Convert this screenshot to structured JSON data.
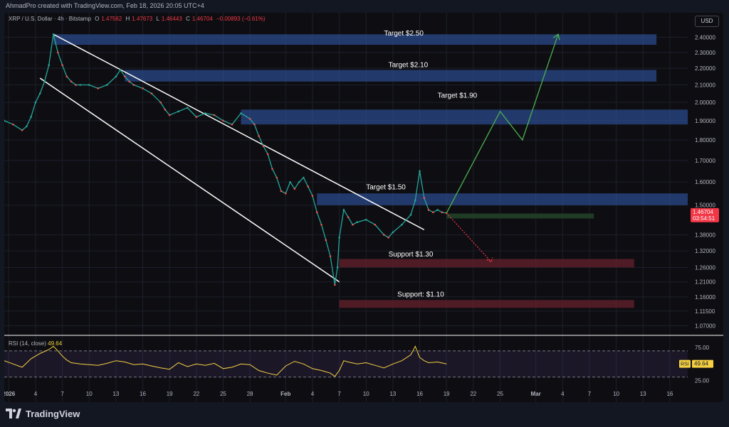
{
  "header": {
    "created_by": "AhmadPro created with TradingView.com, Feb 18, 2026 20:05 UTC+4",
    "symbol": "XRP / U.S. Dollar · 4h · Bitstamp",
    "open_label": "O",
    "open": "1.47562",
    "high_label": "H",
    "high": "1.47673",
    "low_label": "L",
    "low": "1.46443",
    "close_label": "C",
    "close": "1.46704",
    "change": "−0.00893 (−0.61%)",
    "currency": "USD"
  },
  "price_tag": {
    "price": "1.46704",
    "countdown": "03:54:51",
    "value": 1.46704,
    "color": "#f23645"
  },
  "rsi": {
    "label": "RSI (14, close)",
    "value": "49.64",
    "tag_name": "RSI",
    "tag_value": "49.64",
    "value_num": 49.64,
    "upper": 70,
    "lower": 30,
    "ticks": [
      {
        "label": "75.00",
        "v": 75
      },
      {
        "label": "25.00",
        "v": 25
      }
    ],
    "color": "#f5d042"
  },
  "footer": {
    "brand": "TradingView"
  },
  "chart_data": {
    "type": "line",
    "title": "",
    "price_axis": {
      "range": [
        1.05,
        2.46
      ],
      "scale": "log",
      "ticks": [
        "2.40000",
        "2.30000",
        "2.20000",
        "2.10000",
        "2.00000",
        "1.90000",
        "1.80000",
        "1.70000",
        "1.60000",
        "1.50000",
        "1.38000",
        "1.32000",
        "1.26000",
        "1.21000",
        "1.16000",
        "1.11500",
        "1.07000"
      ],
      "tick_values": [
        2.4,
        2.3,
        2.2,
        2.1,
        2.0,
        1.9,
        1.8,
        1.7,
        1.6,
        1.5,
        1.38,
        1.32,
        1.26,
        1.21,
        1.16,
        1.115,
        1.07
      ]
    },
    "time_axis": {
      "labels": [
        "2026",
        "4",
        "7",
        "10",
        "13",
        "16",
        "19",
        "22",
        "25",
        "28",
        "Feb",
        "4",
        "7",
        "10",
        "13",
        "16",
        "19",
        "22",
        "25",
        "Mar",
        "4",
        "7",
        "10",
        "13",
        "16"
      ],
      "label_days": [
        1,
        4,
        7,
        10,
        13,
        16,
        19,
        22,
        25,
        28,
        32,
        35,
        38,
        41,
        44,
        47,
        50,
        53,
        56,
        60,
        63,
        66,
        69,
        72,
        75
      ],
      "range_days": [
        0.5,
        77
      ]
    },
    "price_series": {
      "name": "",
      "x": [
        0.5,
        1.5,
        2.5,
        3,
        3.5,
        4,
        4.5,
        5,
        5.5,
        6,
        6.5,
        7,
        7.5,
        8,
        8.5,
        9,
        10,
        11,
        12,
        13,
        13.5,
        14,
        14.5,
        15,
        16,
        17,
        18,
        18.5,
        19,
        20,
        21,
        22,
        23,
        24,
        25,
        26,
        27,
        28,
        28.5,
        29,
        29.5,
        30,
        30.5,
        31,
        31.5,
        32,
        32.5,
        33,
        33.5,
        34,
        34.5,
        35,
        35.5,
        36,
        36.5,
        37,
        37.5,
        37.8,
        38,
        38.5,
        39,
        39.5,
        40,
        41,
        42,
        43,
        43.5,
        44,
        45,
        46,
        46.5,
        47,
        47.5,
        48,
        48.5,
        49,
        49.5,
        50
      ],
      "y": [
        1.9,
        1.88,
        1.85,
        1.87,
        1.92,
        2.0,
        2.05,
        2.12,
        2.22,
        2.42,
        2.3,
        2.22,
        2.15,
        2.12,
        2.1,
        2.1,
        2.1,
        2.08,
        2.1,
        2.15,
        2.19,
        2.15,
        2.12,
        2.1,
        2.08,
        2.05,
        2.0,
        1.96,
        1.93,
        1.95,
        1.97,
        1.92,
        1.94,
        1.93,
        1.9,
        1.88,
        1.94,
        1.91,
        1.88,
        1.82,
        1.77,
        1.73,
        1.66,
        1.62,
        1.56,
        1.55,
        1.6,
        1.57,
        1.6,
        1.62,
        1.58,
        1.54,
        1.47,
        1.42,
        1.36,
        1.3,
        1.2,
        1.26,
        1.37,
        1.48,
        1.45,
        1.42,
        1.43,
        1.44,
        1.42,
        1.38,
        1.37,
        1.39,
        1.42,
        1.46,
        1.52,
        1.65,
        1.53,
        1.48,
        1.47,
        1.48,
        1.47,
        1.467
      ]
    },
    "rsi_series": {
      "name": "",
      "x": [
        0.5,
        1.5,
        2.5,
        3.5,
        4.5,
        5.5,
        6,
        6.5,
        7,
        7.5,
        8,
        9,
        10,
        11,
        12,
        13,
        14,
        15,
        16,
        17,
        18,
        19,
        20,
        21,
        22,
        23,
        24,
        25,
        26,
        27,
        28,
        29,
        30,
        31,
        32,
        33,
        34,
        35,
        36,
        37,
        37.5,
        38,
        38.5,
        39,
        40,
        41,
        42,
        43,
        44,
        45,
        46,
        46.5,
        47,
        47.5,
        48,
        49,
        50
      ],
      "y": [
        55,
        50,
        45,
        58,
        66,
        72,
        77,
        70,
        62,
        56,
        52,
        50,
        49,
        48,
        51,
        55,
        53,
        49,
        50,
        47,
        44,
        42,
        52,
        46,
        50,
        48,
        51,
        43,
        45,
        50,
        49,
        40,
        36,
        33,
        47,
        54,
        50,
        43,
        40,
        36,
        31,
        40,
        55,
        53,
        50,
        52,
        48,
        44,
        50,
        55,
        64,
        77,
        60,
        55,
        52,
        53,
        50
      ]
    },
    "channel_lines": [
      {
        "name": "",
        "from": {
          "x": 6,
          "y": 2.42
        },
        "to": {
          "x": 47.5,
          "y": 1.4
        }
      },
      {
        "name": "",
        "from": {
          "x": 4.5,
          "y": 2.14
        },
        "to": {
          "x": 38,
          "y": 1.21
        }
      }
    ],
    "target_zones": [
      {
        "label": "Target $2.50",
        "low": 2.35,
        "high": 2.42,
        "x_from": 6,
        "x_to": 73.5,
        "color": "#2a4a8a"
      },
      {
        "label": "Target $2.10",
        "low": 2.12,
        "high": 2.19,
        "x_from": 14,
        "x_to": 73.5,
        "color": "#2a4a8a"
      },
      {
        "label": "Target $1.90",
        "low": 1.88,
        "high": 1.96,
        "x_from": 27,
        "x_to": 77,
        "color": "#2a4a8a"
      },
      {
        "label": "Target $1.50",
        "low": 1.5,
        "high": 1.55,
        "x_from": 35.5,
        "x_to": 77,
        "color": "#2a4a8a"
      }
    ],
    "current_zone": {
      "low": 1.445,
      "high": 1.465,
      "x_from": 50,
      "x_to": 66.5,
      "color": "#1f3b24"
    },
    "support_zones": [
      {
        "label": "Support $1.30",
        "low": 1.26,
        "high": 1.29,
        "x_from": 38,
        "x_to": 71,
        "color": "#5a1e2a"
      },
      {
        "label": "Support: $1.10",
        "low": 1.125,
        "high": 1.15,
        "x_from": 38,
        "x_to": 71,
        "color": "#5a1e2a"
      }
    ],
    "projection_up": {
      "x": [
        50,
        56,
        58.5,
        62.5
      ],
      "y": [
        1.467,
        1.95,
        1.8,
        2.42
      ],
      "color": "#4caf50"
    },
    "projection_down": {
      "x": [
        50,
        55
      ],
      "y": [
        1.467,
        1.28
      ],
      "color": "#f23645"
    },
    "grid": true,
    "legend": "none"
  }
}
